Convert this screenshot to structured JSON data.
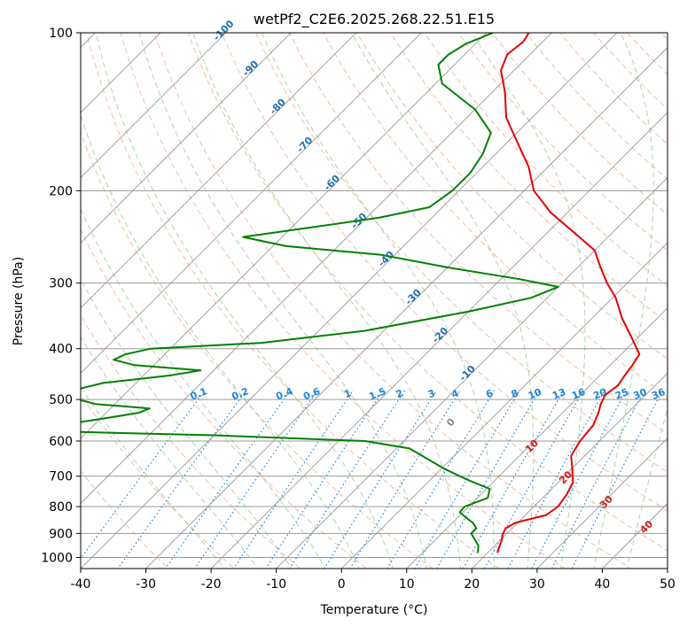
{
  "chart_data": {
    "type": "line",
    "subtype": "skew-t log-p diagram",
    "title": "wetPf2_C2E6.2025.268.22.51.E15",
    "xlabel": "Temperature (°C)",
    "ylabel": "Pressure (hPa)",
    "xlim": [
      -40,
      50
    ],
    "ylim": [
      1050,
      100
    ],
    "x_ticks": [
      -40,
      -30,
      -20,
      -10,
      0,
      10,
      20,
      30,
      40,
      50
    ],
    "y_ticks": [
      1000,
      900,
      800,
      700,
      600,
      500,
      400,
      300,
      200,
      100
    ],
    "colors": {
      "temperature": "#e60000",
      "dewpoint": "#008000",
      "isotherm": "#9a9a9a",
      "dry_adiabat": "#f4a582",
      "moist_adiabat": "#8fc98f",
      "mixing_ratio": "#1f86d6",
      "isotherm_label": "#1f6fb0",
      "moist_label": "#888888",
      "dry_label": "#d02020"
    },
    "series": [
      {
        "name": "Temperature",
        "color": "#e60000",
        "points": [
          {
            "p": 980,
            "t": 21.5
          },
          {
            "p": 960,
            "t": 21.0
          },
          {
            "p": 930,
            "t": 20.3
          },
          {
            "p": 905,
            "t": 19.5
          },
          {
            "p": 880,
            "t": 19.0
          },
          {
            "p": 860,
            "t": 19.6
          },
          {
            "p": 850,
            "t": 20.7
          },
          {
            "p": 830,
            "t": 23.2
          },
          {
            "p": 800,
            "t": 23.7
          },
          {
            "p": 760,
            "t": 23.2
          },
          {
            "p": 720,
            "t": 22.3
          },
          {
            "p": 680,
            "t": 20.2
          },
          {
            "p": 640,
            "t": 17.9
          },
          {
            "p": 600,
            "t": 17.0
          },
          {
            "p": 560,
            "t": 16.6
          },
          {
            "p": 530,
            "t": 15.5
          },
          {
            "p": 510,
            "t": 14.5
          },
          {
            "p": 490,
            "t": 13.8
          },
          {
            "p": 470,
            "t": 14.3
          },
          {
            "p": 450,
            "t": 13.8
          },
          {
            "p": 430,
            "t": 13.4
          },
          {
            "p": 410,
            "t": 12.8
          },
          {
            "p": 380,
            "t": 8.9
          },
          {
            "p": 350,
            "t": 4.6
          },
          {
            "p": 320,
            "t": 0.5
          },
          {
            "p": 300,
            "t": -3.1
          },
          {
            "p": 280,
            "t": -6.5
          },
          {
            "p": 260,
            "t": -10.0
          },
          {
            "p": 240,
            "t": -16.0
          },
          {
            "p": 220,
            "t": -22.6
          },
          {
            "p": 200,
            "t": -28.5
          },
          {
            "p": 180,
            "t": -33.0
          },
          {
            "p": 160,
            "t": -39.0
          },
          {
            "p": 145,
            "t": -44.0
          },
          {
            "p": 130,
            "t": -48.0
          },
          {
            "p": 118,
            "t": -52.0
          },
          {
            "p": 110,
            "t": -53.5
          },
          {
            "p": 104,
            "t": -53.0
          },
          {
            "p": 100,
            "t": -53.5
          }
        ]
      },
      {
        "name": "Dewpoint",
        "color": "#008000",
        "points": [
          {
            "p": 980,
            "t": 18.5
          },
          {
            "p": 950,
            "t": 17.5
          },
          {
            "p": 900,
            "t": 14.5
          },
          {
            "p": 880,
            "t": 14.5
          },
          {
            "p": 860,
            "t": 13.2
          },
          {
            "p": 840,
            "t": 11.3
          },
          {
            "p": 820,
            "t": 9.5
          },
          {
            "p": 800,
            "t": 9.4
          },
          {
            "p": 770,
            "t": 11.6
          },
          {
            "p": 740,
            "t": 10.5
          },
          {
            "p": 710,
            "t": 5.5
          },
          {
            "p": 680,
            "t": 0.8
          },
          {
            "p": 650,
            "t": -3.5
          },
          {
            "p": 620,
            "t": -8.0
          },
          {
            "p": 600,
            "t": -16.0
          },
          {
            "p": 585,
            "t": -40.0
          },
          {
            "p": 575,
            "t": -65.0
          },
          {
            "p": 560,
            "t": -65.5
          },
          {
            "p": 545,
            "t": -60.0
          },
          {
            "p": 530,
            "t": -55.0
          },
          {
            "p": 520,
            "t": -54.0
          },
          {
            "p": 510,
            "t": -63.0
          },
          {
            "p": 495,
            "t": -68.0
          },
          {
            "p": 480,
            "t": -68.5
          },
          {
            "p": 465,
            "t": -65.0
          },
          {
            "p": 450,
            "t": -56.0
          },
          {
            "p": 440,
            "t": -52.0
          },
          {
            "p": 430,
            "t": -63.0
          },
          {
            "p": 420,
            "t": -67.0
          },
          {
            "p": 410,
            "t": -66.0
          },
          {
            "p": 400,
            "t": -63.0
          },
          {
            "p": 390,
            "t": -47.0
          },
          {
            "p": 370,
            "t": -33.0
          },
          {
            "p": 340,
            "t": -20.0
          },
          {
            "p": 320,
            "t": -12.5
          },
          {
            "p": 305,
            "t": -10.0
          },
          {
            "p": 295,
            "t": -17.0
          },
          {
            "p": 280,
            "t": -30.0
          },
          {
            "p": 265,
            "t": -42.0
          },
          {
            "p": 255,
            "t": -58.0
          },
          {
            "p": 245,
            "t": -66.0
          },
          {
            "p": 235,
            "t": -57.0
          },
          {
            "p": 225,
            "t": -48.0
          },
          {
            "p": 215,
            "t": -42.0
          },
          {
            "p": 200,
            "t": -41.0
          },
          {
            "p": 185,
            "t": -41.0
          },
          {
            "p": 170,
            "t": -42.0
          },
          {
            "p": 155,
            "t": -44.0
          },
          {
            "p": 140,
            "t": -50.0
          },
          {
            "p": 125,
            "t": -59.0
          },
          {
            "p": 115,
            "t": -62.5
          },
          {
            "p": 110,
            "t": -62.5
          },
          {
            "p": 105,
            "t": -61.5
          },
          {
            "p": 100,
            "t": -59.0
          }
        ]
      }
    ],
    "isotherm_labels": [
      "-100",
      "-90",
      "-80",
      "-70",
      "-60",
      "-50",
      "-40",
      "-30",
      "-20",
      "-10"
    ],
    "isotherm_label_values": [
      -100,
      -90,
      -80,
      -70,
      -60,
      -50,
      -40,
      -30,
      -20,
      -10
    ],
    "mixing_ratio_labels": [
      "0.1",
      "0.2",
      "0.4",
      "0.6",
      "1",
      "1.5",
      "2",
      "3",
      "4",
      "6",
      "8",
      "10",
      "13",
      "16",
      "20",
      "25",
      "30",
      "36"
    ],
    "mixing_ratio_values": [
      0.1,
      0.2,
      0.4,
      0.6,
      1,
      1.5,
      2,
      3,
      4,
      6,
      8,
      10,
      13,
      16,
      20,
      25,
      30,
      36
    ],
    "moist_adiabat_label": "0",
    "moist_adiabat_label_value": 0,
    "dry_adiabat_labels": [
      "10",
      "20",
      "30",
      "40"
    ],
    "dry_adiabat_label_values": [
      10,
      20,
      30,
      40
    ]
  }
}
